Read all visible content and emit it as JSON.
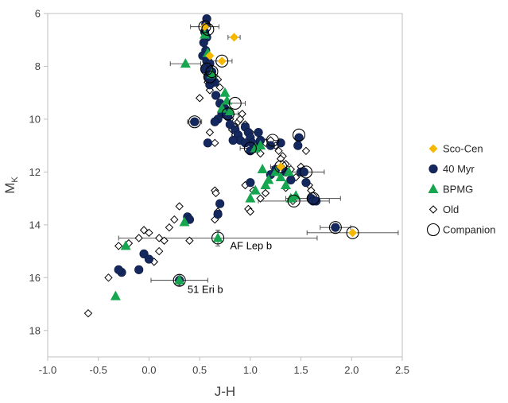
{
  "chart_data": {
    "type": "scatter",
    "xlabel": "J-H",
    "ylabel_main": "M",
    "ylabel_sub": "K",
    "xlim": [
      -1.0,
      2.5
    ],
    "ylim": [
      19,
      6
    ],
    "y_inverted": true,
    "x_ticks": [
      "-1.0",
      "-0.5",
      "0.0",
      "0.5",
      "1.0",
      "1.5",
      "2.0",
      "2.5"
    ],
    "x_tick_values": [
      -1.0,
      -0.5,
      0.0,
      0.5,
      1.0,
      1.5,
      2.0,
      2.5
    ],
    "y_ticks": [
      "6",
      "8",
      "10",
      "12",
      "14",
      "16",
      "18"
    ],
    "y_tick_values": [
      6,
      8,
      10,
      12,
      14,
      16,
      18
    ],
    "grid": false,
    "legend_position": "right",
    "colors": {
      "sco_cen": "#f5b800",
      "myr40": "#15285e",
      "bpmg": "#16a64f",
      "old": "#000000",
      "companion": "#000000"
    },
    "series": [
      {
        "name": "Sco-Cen",
        "marker": "diamond-filled",
        "points": [
          [
            0.55,
            6.5
          ],
          [
            0.84,
            6.9
          ],
          [
            0.72,
            7.8
          ],
          [
            0.6,
            7.6
          ],
          [
            1.3,
            11.8
          ],
          [
            2.01,
            14.3
          ]
        ]
      },
      {
        "name": "40 Myr",
        "marker": "circle-filled",
        "points": [
          [
            0.57,
            6.2
          ],
          [
            0.56,
            6.4
          ],
          [
            0.55,
            6.7
          ],
          [
            0.57,
            6.9
          ],
          [
            0.54,
            7.1
          ],
          [
            0.56,
            7.4
          ],
          [
            0.53,
            7.6
          ],
          [
            0.57,
            7.8
          ],
          [
            0.6,
            7.9
          ],
          [
            0.55,
            8.1
          ],
          [
            0.62,
            8.2
          ],
          [
            0.58,
            8.4
          ],
          [
            0.65,
            8.6
          ],
          [
            0.6,
            8.7
          ],
          [
            0.66,
            9.1
          ],
          [
            0.7,
            9.4
          ],
          [
            0.75,
            9.6
          ],
          [
            0.72,
            9.8
          ],
          [
            0.68,
            10.0
          ],
          [
            0.65,
            10.1
          ],
          [
            0.45,
            10.1
          ],
          [
            0.78,
            9.9
          ],
          [
            0.8,
            10.2
          ],
          [
            0.85,
            10.4
          ],
          [
            0.88,
            10.6
          ],
          [
            0.9,
            10.8
          ],
          [
            0.83,
            10.8
          ],
          [
            0.95,
            10.3
          ],
          [
            0.98,
            10.5
          ],
          [
            1.0,
            10.7
          ],
          [
            1.02,
            10.9
          ],
          [
            1.05,
            11.1
          ],
          [
            1.0,
            11.2
          ],
          [
            0.95,
            10.9
          ],
          [
            0.58,
            10.9
          ],
          [
            1.08,
            10.5
          ],
          [
            1.1,
            10.8
          ],
          [
            1.2,
            11.0
          ],
          [
            1.3,
            10.9
          ],
          [
            1.48,
            10.7
          ],
          [
            1.47,
            11.0
          ],
          [
            1.25,
            11.9
          ],
          [
            1.35,
            12.0
          ],
          [
            1.4,
            12.3
          ],
          [
            1.5,
            12.0
          ],
          [
            1.53,
            12.0
          ],
          [
            1.6,
            13.0
          ],
          [
            1.62,
            13.1
          ],
          [
            1.65,
            13.1
          ],
          [
            1.55,
            12.4
          ],
          [
            1.2,
            12.1
          ],
          [
            1.0,
            12.4
          ],
          [
            1.84,
            14.1
          ],
          [
            0.38,
            13.7
          ],
          [
            0.4,
            13.8
          ],
          [
            0.68,
            13.6
          ],
          [
            0.7,
            13.2
          ],
          [
            -0.05,
            15.1
          ],
          [
            0.0,
            15.3
          ],
          [
            -0.1,
            15.7
          ],
          [
            -0.27,
            15.8
          ],
          [
            -0.3,
            15.7
          ],
          [
            0.3,
            16.1
          ],
          [
            0.62,
            8.5
          ]
        ]
      },
      {
        "name": "BPMG",
        "marker": "triangle-filled",
        "points": [
          [
            0.55,
            6.8
          ],
          [
            0.36,
            7.9
          ],
          [
            0.58,
            7.5
          ],
          [
            0.62,
            8.3
          ],
          [
            0.75,
            9.0
          ],
          [
            0.77,
            9.3
          ],
          [
            0.72,
            9.6
          ],
          [
            0.8,
            9.7
          ],
          [
            1.05,
            11.1
          ],
          [
            1.1,
            11.0
          ],
          [
            1.12,
            11.9
          ],
          [
            1.18,
            12.3
          ],
          [
            1.25,
            12.0
          ],
          [
            1.3,
            12.2
          ],
          [
            1.35,
            12.5
          ],
          [
            1.38,
            12.0
          ],
          [
            1.05,
            12.7
          ],
          [
            1.15,
            12.5
          ],
          [
            1.4,
            13.0
          ],
          [
            1.0,
            13.0
          ],
          [
            1.45,
            12.9
          ],
          [
            0.35,
            13.9
          ],
          [
            0.68,
            14.5
          ],
          [
            -0.23,
            14.8
          ],
          [
            -0.33,
            16.7
          ],
          [
            0.3,
            16.1
          ]
        ]
      },
      {
        "name": "Old",
        "marker": "diamond-open",
        "points": [
          [
            -0.6,
            17.35
          ],
          [
            -0.4,
            16.0
          ],
          [
            -0.3,
            14.8
          ],
          [
            -0.2,
            14.7
          ],
          [
            -0.1,
            14.5
          ],
          [
            0.0,
            14.3
          ],
          [
            0.1,
            14.5
          ],
          [
            0.2,
            14.1
          ],
          [
            0.25,
            13.8
          ],
          [
            0.3,
            13.3
          ],
          [
            0.05,
            15.4
          ],
          [
            0.1,
            15.0
          ],
          [
            -0.05,
            14.2
          ],
          [
            0.15,
            14.6
          ],
          [
            0.4,
            14.6
          ],
          [
            0.65,
            13.8
          ],
          [
            0.65,
            12.7
          ],
          [
            0.66,
            12.8
          ],
          [
            0.68,
            13.5
          ],
          [
            0.5,
            9.2
          ],
          [
            0.6,
            8.9
          ],
          [
            0.7,
            8.8
          ],
          [
            0.6,
            10.5
          ],
          [
            0.65,
            10.9
          ],
          [
            0.8,
            10.0
          ],
          [
            0.85,
            10.3
          ],
          [
            0.88,
            10.1
          ],
          [
            0.9,
            10.0
          ],
          [
            0.92,
            9.8
          ],
          [
            0.95,
            10.2
          ],
          [
            1.0,
            10.5
          ],
          [
            1.05,
            11.0
          ],
          [
            1.1,
            11.3
          ],
          [
            1.15,
            10.9
          ],
          [
            1.2,
            10.8
          ],
          [
            1.25,
            11.0
          ],
          [
            1.28,
            11.2
          ],
          [
            1.32,
            11.4
          ],
          [
            1.35,
            11.7
          ],
          [
            1.4,
            11.9
          ],
          [
            1.45,
            12.2
          ],
          [
            1.5,
            11.8
          ],
          [
            1.55,
            11.2
          ],
          [
            1.58,
            12.5
          ],
          [
            1.6,
            12.7
          ],
          [
            1.62,
            12.9
          ],
          [
            1.15,
            12.8
          ],
          [
            1.1,
            13.0
          ],
          [
            0.98,
            13.4
          ],
          [
            1.0,
            13.5
          ],
          [
            0.95,
            12.5
          ],
          [
            1.3,
            11.5
          ],
          [
            1.42,
            13.1
          ],
          [
            1.35,
            12.6
          ],
          [
            1.03,
            12.7
          ],
          [
            0.85,
            10.6
          ],
          [
            0.82,
            10.4
          ],
          [
            0.62,
            8.3
          ],
          [
            0.65,
            8.4
          ],
          [
            0.68,
            8.5
          ],
          [
            0.58,
            8.6
          ]
        ]
      },
      {
        "name": "Companion",
        "marker": "circle-open",
        "points": [
          [
            0.55,
            6.5
          ],
          [
            0.72,
            7.8
          ],
          [
            0.57,
            8.1
          ],
          [
            0.85,
            9.4
          ],
          [
            0.45,
            10.1
          ],
          [
            0.6,
            8.4
          ],
          [
            0.78,
            9.8
          ],
          [
            1.22,
            10.8
          ],
          [
            1.48,
            10.6
          ],
          [
            1.0,
            11.1
          ],
          [
            1.3,
            11.8
          ],
          [
            1.55,
            12.0
          ],
          [
            1.62,
            13.0
          ],
          [
            1.43,
            13.1
          ],
          [
            1.84,
            14.1
          ],
          [
            2.01,
            14.3
          ],
          [
            0.68,
            14.5
          ],
          [
            0.3,
            16.1
          ],
          [
            0.58,
            6.6
          ],
          [
            0.62,
            8.2
          ]
        ]
      }
    ],
    "error_bars": [
      {
        "x": 0.55,
        "y": 6.5,
        "xerr": 0.14
      },
      {
        "x": 0.84,
        "y": 6.9,
        "xerr": 0.06
      },
      {
        "x": 0.72,
        "y": 7.8,
        "xerr": 0.1
      },
      {
        "x": 0.36,
        "y": 7.9,
        "xerr": 0.15
      },
      {
        "x": 0.85,
        "y": 9.4,
        "xerr": 0.1
      },
      {
        "x": 0.78,
        "y": 9.8,
        "xerr": 0.1
      },
      {
        "x": 0.45,
        "y": 10.1,
        "xerr": 0.07
      },
      {
        "x": 1.22,
        "y": 10.8,
        "xerr": 0.07
      },
      {
        "x": 1.0,
        "y": 11.1,
        "xerr": 0.1
      },
      {
        "x": 1.3,
        "y": 11.8,
        "xerr": 0.1
      },
      {
        "x": 1.55,
        "y": 12.0,
        "xerr": 0.18
      },
      {
        "x": 1.62,
        "y": 13.0,
        "xerr": 0.27
      },
      {
        "x": 1.43,
        "y": 13.1,
        "xerr": 0.35
      },
      {
        "x": 1.84,
        "y": 14.1,
        "xerr": 0.15
      },
      {
        "x": 2.01,
        "y": 14.3,
        "xerr": 0.45
      },
      {
        "x": 0.68,
        "y": 14.5,
        "xerr": 0.98,
        "yerr": 0.3
      },
      {
        "x": 0.3,
        "y": 16.1,
        "xerr": 0.28,
        "yerr": 0.2
      }
    ],
    "annotations": [
      {
        "text": "AF Lep b",
        "x": 0.8,
        "y": 14.8
      },
      {
        "text": "51 Eri b",
        "x": 0.38,
        "y": 16.45
      }
    ]
  }
}
